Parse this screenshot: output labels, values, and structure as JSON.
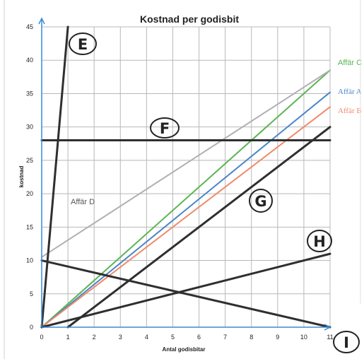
{
  "chart_data": {
    "type": "line",
    "title": "Kostnad per godisbit",
    "xlabel": "Antal godisbitar",
    "ylabel": "kostnad",
    "xlim": [
      0,
      11
    ],
    "ylim": [
      0,
      45
    ],
    "x_ticks": [
      0,
      1,
      2,
      3,
      4,
      5,
      6,
      7,
      8,
      9,
      10,
      11
    ],
    "y_ticks": [
      0,
      5,
      10,
      15,
      20,
      25,
      30,
      35,
      40,
      45
    ],
    "grid": true,
    "series": [
      {
        "name": "Affär C",
        "label": "Affär C",
        "color": "#5ab552",
        "x": [
          0,
          11
        ],
        "y": [
          0,
          38.5
        ]
      },
      {
        "name": "Affär A",
        "label": "Affär A",
        "color": "#4a86c8",
        "x": [
          0,
          11
        ],
        "y": [
          0,
          35.2
        ]
      },
      {
        "name": "Affär B",
        "label": "Affär B",
        "color": "#ef8a6a",
        "x": [
          0,
          11
        ],
        "y": [
          0,
          33
        ]
      },
      {
        "name": "Affär D",
        "label": "Affär D",
        "color": "#b3adb5",
        "x": [
          0,
          11
        ],
        "y": [
          10.5,
          38.5
        ]
      }
    ],
    "hand_lines": [
      {
        "name": "E",
        "label": "E",
        "color": "#2f2f2f",
        "x": [
          0,
          1
        ],
        "y": [
          0,
          45
        ]
      },
      {
        "name": "F",
        "label": "F",
        "color": "#2f2f2f",
        "x": [
          0,
          11
        ],
        "y": [
          28,
          28
        ]
      },
      {
        "name": "G",
        "label": "G",
        "color": "#2f2f2f",
        "x": [
          1,
          11
        ],
        "y": [
          0,
          30
        ]
      },
      {
        "name": "H",
        "label": "H",
        "color": "#2f2f2f",
        "x": [
          0,
          11
        ],
        "y": [
          0,
          11
        ]
      },
      {
        "name": "I",
        "label": "I",
        "color": "#2f2f2f",
        "x": [
          0,
          11
        ],
        "y": [
          10,
          0
        ]
      }
    ],
    "grid_color": "#b8b8b8",
    "axis_arrow_color": "#3a8ad6"
  }
}
